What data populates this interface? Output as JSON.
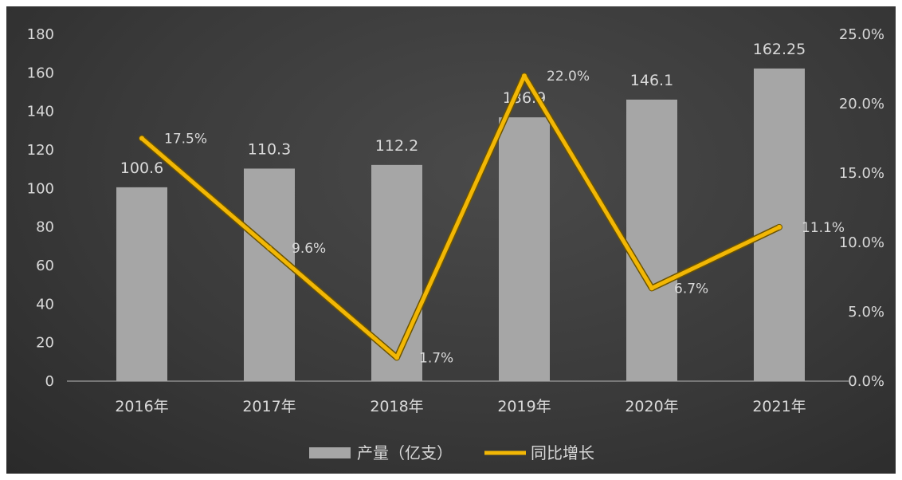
{
  "colors": {
    "bar": "#a6a6a6",
    "line": "#f2b705",
    "text": "#d9d9d9"
  },
  "chart_data": {
    "type": "bar",
    "categories": [
      "2016年",
      "2017年",
      "2018年",
      "2019年",
      "2020年",
      "2021年"
    ],
    "series": [
      {
        "name": "产量（亿支）",
        "type": "bar",
        "axis": "left",
        "values": [
          100.6,
          110.3,
          112.2,
          136.9,
          146.1,
          162.25
        ],
        "labels": [
          "100.6",
          "110.3",
          "112.2",
          "136.9",
          "146.1",
          "162.25"
        ]
      },
      {
        "name": "同比增长",
        "type": "line",
        "axis": "right",
        "values": [
          17.5,
          9.6,
          1.7,
          22.0,
          6.7,
          11.1
        ],
        "labels": [
          "17.5%",
          "9.6%",
          "1.7%",
          "22.0%",
          "6.7%",
          "11.1%"
        ]
      }
    ],
    "y_left": {
      "ylim": [
        0,
        180
      ],
      "ticks": [
        "0",
        "20",
        "40",
        "60",
        "80",
        "100",
        "120",
        "140",
        "160",
        "180"
      ]
    },
    "y_right": {
      "ylim": [
        0,
        25
      ],
      "ticks": [
        "0.0%",
        "5.0%",
        "10.0%",
        "15.0%",
        "20.0%",
        "25.0%"
      ]
    },
    "title": "",
    "xlabel": "",
    "ylabel": "",
    "grid": false,
    "legend": {
      "position": "bottom",
      "items": [
        "产量（亿支）",
        "同比增长"
      ]
    }
  }
}
